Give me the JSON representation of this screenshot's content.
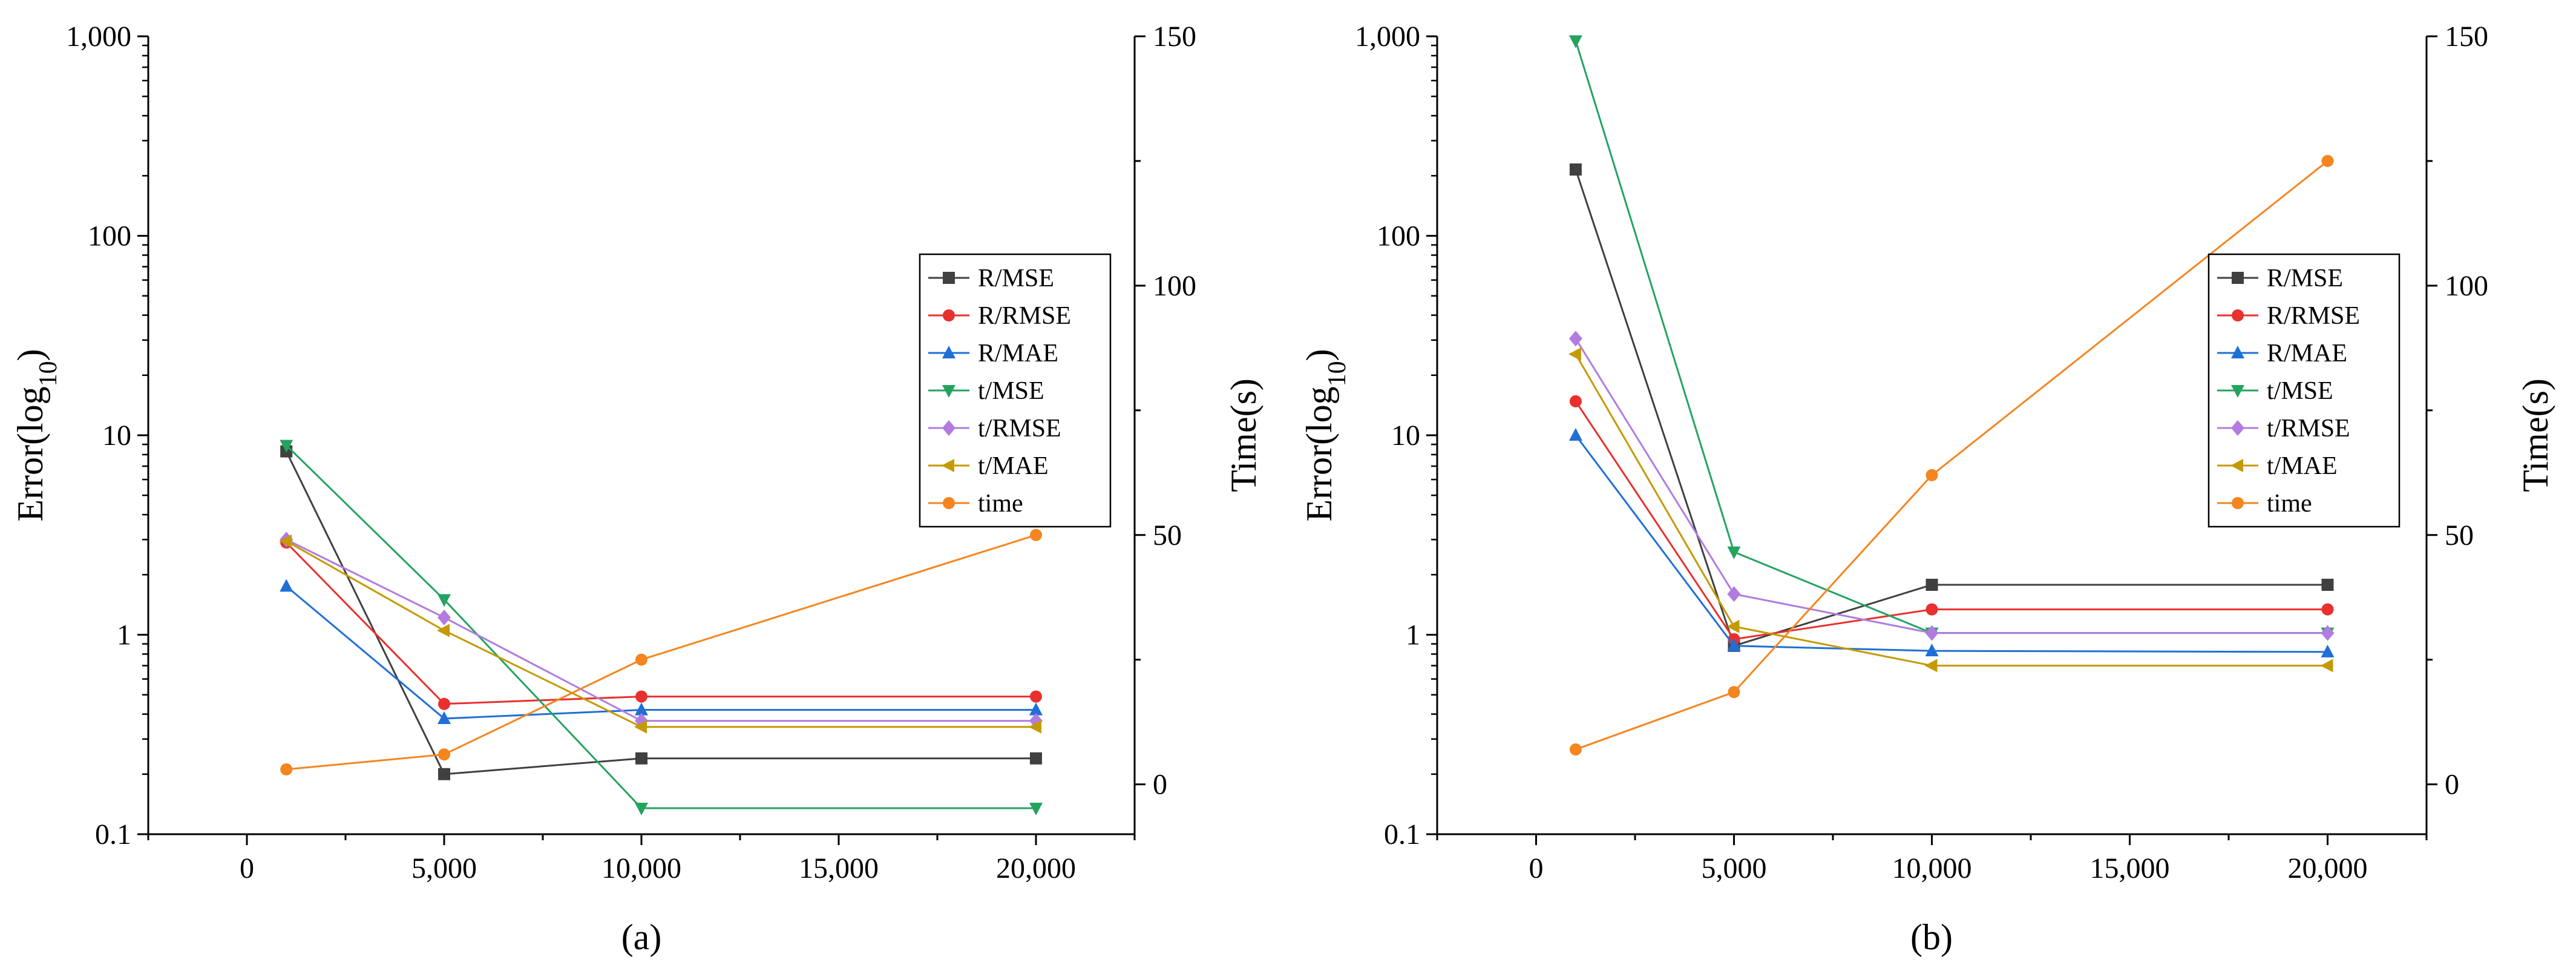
{
  "chart_data": [
    {
      "type": "line",
      "caption": "(a)",
      "ylabel_left": "Error(log",
      "ylabel_left_sub": "10",
      "ylabel_left_end": ")",
      "ylabel_right": "Time(s)",
      "xlim": [
        -2500,
        22500
      ],
      "xticks": [
        0,
        5000,
        10000,
        15000,
        20000
      ],
      "xtick_labels": [
        "0",
        "5,000",
        "10,000",
        "15,000",
        "20,000"
      ],
      "y_left_scale": "log",
      "y_left_lim": [
        0.1,
        1000
      ],
      "y_left_ticks": [
        0.1,
        1,
        10,
        100,
        1000
      ],
      "y_left_tick_labels": [
        "0.1",
        "1",
        "10",
        "100",
        "1,000"
      ],
      "y_right_lim": [
        -10,
        150
      ],
      "y_right_ticks": [
        0,
        50,
        100,
        150
      ],
      "y_right_tick_labels": [
        "0",
        "50",
        "100",
        "150"
      ],
      "legend_position": "right",
      "x": [
        1000,
        5000,
        10000,
        20000
      ],
      "series": [
        {
          "name": "R/MSE",
          "axis": "left",
          "marker": "square",
          "color": "#404040",
          "values": [
            8.3,
            0.2,
            0.24,
            0.24
          ]
        },
        {
          "name": "R/RMSE",
          "axis": "left",
          "marker": "circle",
          "color": "#e8302e",
          "values": [
            2.9,
            0.45,
            0.49,
            0.49
          ]
        },
        {
          "name": "R/MAE",
          "axis": "left",
          "marker": "triangle-up",
          "color": "#1f6fd6",
          "values": [
            1.75,
            0.38,
            0.42,
            0.42
          ]
        },
        {
          "name": "t/MSE",
          "axis": "left",
          "marker": "triangle-down",
          "color": "#24a35f",
          "values": [
            8.9,
            1.5,
            0.135,
            0.135
          ]
        },
        {
          "name": "t/RMSE",
          "axis": "left",
          "marker": "diamond",
          "color": "#b07ce0",
          "values": [
            3.0,
            1.22,
            0.37,
            0.37
          ]
        },
        {
          "name": "t/MAE",
          "axis": "left",
          "marker": "triangle-left",
          "color": "#c49a00",
          "values": [
            2.95,
            1.05,
            0.345,
            0.345
          ]
        },
        {
          "name": "time",
          "axis": "right",
          "marker": "circle",
          "color": "#f5851f",
          "values": [
            3,
            6,
            25,
            50
          ]
        }
      ]
    },
    {
      "type": "line",
      "caption": "(b)",
      "ylabel_left": "Error(log",
      "ylabel_left_sub": "10",
      "ylabel_left_end": ")",
      "ylabel_right": "Time(s)",
      "xlim": [
        -2500,
        22500
      ],
      "xticks": [
        0,
        5000,
        10000,
        15000,
        20000
      ],
      "xtick_labels": [
        "0",
        "5,000",
        "10,000",
        "15,000",
        "20,000"
      ],
      "y_left_scale": "log",
      "y_left_lim": [
        0.1,
        1000
      ],
      "y_left_ticks": [
        0.1,
        1,
        10,
        100,
        1000
      ],
      "y_left_tick_labels": [
        "0.1",
        "1",
        "10",
        "100",
        "1,000"
      ],
      "y_right_lim": [
        -10,
        150
      ],
      "y_right_ticks": [
        0,
        50,
        100,
        150
      ],
      "y_right_tick_labels": [
        "0",
        "50",
        "100",
        "150"
      ],
      "legend_position": "right",
      "x": [
        1000,
        5000,
        10000,
        20000
      ],
      "series": [
        {
          "name": "R/MSE",
          "axis": "left",
          "marker": "square",
          "color": "#404040",
          "values": [
            215,
            0.88,
            1.78,
            1.78
          ]
        },
        {
          "name": "R/RMSE",
          "axis": "left",
          "marker": "circle",
          "color": "#e8302e",
          "values": [
            14.8,
            0.95,
            1.34,
            1.34
          ]
        },
        {
          "name": "R/MAE",
          "axis": "left",
          "marker": "triangle-up",
          "color": "#1f6fd6",
          "values": [
            10,
            0.88,
            0.83,
            0.82
          ]
        },
        {
          "name": "t/MSE",
          "axis": "left",
          "marker": "triangle-down",
          "color": "#24a35f",
          "values": [
            950,
            2.6,
            1.02,
            1.02
          ]
        },
        {
          "name": "t/RMSE",
          "axis": "left",
          "marker": "diamond",
          "color": "#b07ce0",
          "values": [
            30.5,
            1.6,
            1.02,
            1.02
          ]
        },
        {
          "name": "t/MAE",
          "axis": "left",
          "marker": "triangle-left",
          "color": "#c49a00",
          "values": [
            25.5,
            1.1,
            0.7,
            0.7
          ]
        },
        {
          "name": "time",
          "axis": "right",
          "marker": "circle",
          "color": "#f5851f",
          "values": [
            7,
            18.5,
            62,
            125
          ]
        }
      ]
    }
  ]
}
